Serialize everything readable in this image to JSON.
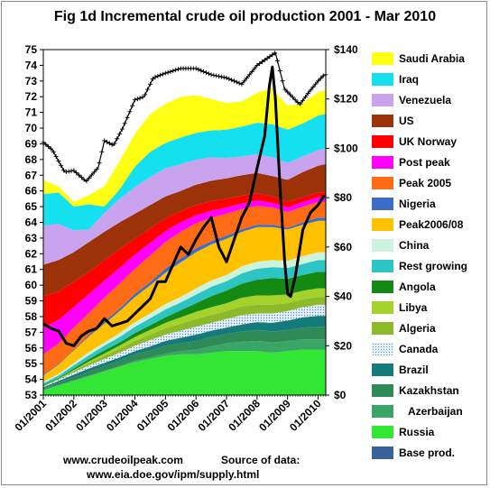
{
  "chart_data": {
    "type": "area",
    "title": "Fig 1d Incremental crude oil production 2001 - Mar 2010",
    "x_start": "2001-01",
    "x_end": "2010-03",
    "x_tick_labels": [
      "01/2001",
      "01/2002",
      "01/2003",
      "01/2004",
      "01/2005",
      "01/2006",
      "01/2007",
      "01/2008",
      "01/2009",
      "01/2010"
    ],
    "y_left": {
      "min": 53,
      "max": 75,
      "ticks": [
        53,
        54,
        55,
        56,
        57,
        58,
        59,
        60,
        61,
        62,
        63,
        64,
        65,
        66,
        67,
        68,
        69,
        70,
        71,
        72,
        73,
        74,
        75
      ]
    },
    "y_right": {
      "min": 0,
      "max": 140,
      "tick_labels": [
        "$0",
        "$20",
        "$40",
        "$60",
        "$80",
        "$100",
        "$120",
        "$140"
      ]
    },
    "stack_order_bottom_to_top": [
      "Base prod.",
      "Russia",
      "Azerbaijan",
      "Kazakhstan",
      "Brazil",
      "Canada",
      "Algeria",
      "Libya",
      "Angola",
      "Rest growing",
      "China",
      "Peak2006/08",
      "Nigeria",
      "Peak 2005",
      "Post peak",
      "UK Norway",
      "US",
      "Venezuela",
      "Iraq",
      "Saudi Arabia"
    ],
    "x_key": [
      2001.0,
      2001.5,
      2002.0,
      2002.5,
      2003.0,
      2003.5,
      2004.0,
      2004.5,
      2005.0,
      2005.5,
      2006.0,
      2006.5,
      2007.0,
      2007.5,
      2008.0,
      2008.5,
      2009.0,
      2009.5,
      2010.0,
      2010.2
    ],
    "series": [
      {
        "name": "Base prod.",
        "values": [
          53.0,
          53.0,
          53.0,
          53.0,
          53.0,
          53.0,
          53.0,
          53.0,
          53.0,
          53.0,
          53.0,
          53.0,
          53.0,
          53.0,
          53.0,
          53.0,
          53.0,
          53.0,
          53.0,
          53.0
        ]
      },
      {
        "name": "Russia",
        "values": [
          0.3,
          0.6,
          0.9,
          1.2,
          1.5,
          1.8,
          2.1,
          2.3,
          2.5,
          2.6,
          2.6,
          2.7,
          2.8,
          2.8,
          2.8,
          2.7,
          2.8,
          2.9,
          2.9,
          2.9
        ]
      },
      {
        "name": "Azerbaijan",
        "values": [
          0.05,
          0.05,
          0.05,
          0.05,
          0.05,
          0.05,
          0.1,
          0.1,
          0.15,
          0.2,
          0.3,
          0.4,
          0.5,
          0.6,
          0.65,
          0.65,
          0.65,
          0.65,
          0.65,
          0.65
        ]
      },
      {
        "name": "Kazakhstan",
        "values": [
          0.1,
          0.15,
          0.2,
          0.25,
          0.3,
          0.35,
          0.4,
          0.45,
          0.5,
          0.5,
          0.55,
          0.6,
          0.6,
          0.65,
          0.7,
          0.7,
          0.7,
          0.75,
          0.8,
          0.8
        ]
      },
      {
        "name": "Brazil",
        "values": [
          0.05,
          0.1,
          0.15,
          0.2,
          0.2,
          0.2,
          0.2,
          0.25,
          0.3,
          0.35,
          0.4,
          0.4,
          0.4,
          0.45,
          0.5,
          0.55,
          0.6,
          0.65,
          0.7,
          0.7
        ]
      },
      {
        "name": "Canada",
        "values": [
          0.05,
          0.1,
          0.15,
          0.2,
          0.25,
          0.3,
          0.35,
          0.4,
          0.4,
          0.45,
          0.5,
          0.5,
          0.55,
          0.6,
          0.55,
          0.6,
          0.6,
          0.65,
          0.7,
          0.7
        ]
      },
      {
        "name": "Algeria",
        "values": [
          0.05,
          0.05,
          0.1,
          0.15,
          0.2,
          0.25,
          0.3,
          0.35,
          0.4,
          0.45,
          0.5,
          0.5,
          0.5,
          0.55,
          0.55,
          0.55,
          0.5,
          0.5,
          0.5,
          0.5
        ]
      },
      {
        "name": "Libya",
        "values": [
          0.0,
          0.0,
          0.05,
          0.1,
          0.15,
          0.2,
          0.25,
          0.3,
          0.35,
          0.4,
          0.45,
          0.5,
          0.5,
          0.55,
          0.6,
          0.6,
          0.55,
          0.55,
          0.55,
          0.55
        ]
      },
      {
        "name": "Angola",
        "values": [
          0.05,
          0.05,
          0.1,
          0.15,
          0.2,
          0.2,
          0.25,
          0.3,
          0.35,
          0.45,
          0.55,
          0.7,
          0.8,
          0.9,
          1.0,
          1.1,
          1.0,
          1.0,
          1.05,
          1.05
        ]
      },
      {
        "name": "Rest growing",
        "values": [
          0.1,
          0.15,
          0.2,
          0.25,
          0.3,
          0.35,
          0.4,
          0.45,
          0.5,
          0.5,
          0.55,
          0.6,
          0.6,
          0.65,
          0.7,
          0.7,
          0.7,
          0.7,
          0.75,
          0.75
        ]
      },
      {
        "name": "China",
        "values": [
          0.1,
          0.1,
          0.15,
          0.2,
          0.2,
          0.25,
          0.3,
          0.3,
          0.35,
          0.35,
          0.4,
          0.4,
          0.4,
          0.45,
          0.45,
          0.45,
          0.45,
          0.5,
          0.5,
          0.5
        ]
      },
      {
        "name": "Peak2006/08",
        "values": [
          0.4,
          0.6,
          0.8,
          1.0,
          1.2,
          1.4,
          1.6,
          1.8,
          2.0,
          2.2,
          2.3,
          2.3,
          2.3,
          2.2,
          2.2,
          2.1,
          2.0,
          2.0,
          2.0,
          2.0
        ]
      },
      {
        "name": "Nigeria",
        "values": [
          0.05,
          0.05,
          0.05,
          0.1,
          0.15,
          0.15,
          0.2,
          0.2,
          0.25,
          0.25,
          0.25,
          0.2,
          0.2,
          0.15,
          0.15,
          0.15,
          0.1,
          0.15,
          0.2,
          0.2
        ]
      },
      {
        "name": "Peak 2005",
        "values": [
          1.3,
          1.3,
          1.4,
          1.4,
          1.5,
          1.6,
          1.6,
          1.7,
          1.7,
          1.7,
          1.6,
          1.5,
          1.4,
          1.3,
          1.2,
          1.1,
          1.0,
          1.0,
          1.0,
          1.0
        ]
      },
      {
        "name": "Post peak",
        "values": [
          1.7,
          1.5,
          1.3,
          1.2,
          1.1,
          1.0,
          0.9,
          0.8,
          0.7,
          0.6,
          0.5,
          0.45,
          0.4,
          0.35,
          0.35,
          0.3,
          0.3,
          0.3,
          0.3,
          0.3
        ]
      },
      {
        "name": "UK Norway",
        "values": [
          2.0,
          1.8,
          1.6,
          1.4,
          1.3,
          1.2,
          1.0,
          0.9,
          0.8,
          0.7,
          0.65,
          0.6,
          0.55,
          0.5,
          0.45,
          0.4,
          0.35,
          0.3,
          0.3,
          0.3
        ]
      },
      {
        "name": "US",
        "values": [
          2.0,
          2.0,
          1.9,
          1.9,
          1.8,
          1.7,
          1.6,
          1.5,
          1.4,
          1.3,
          1.3,
          1.3,
          1.3,
          1.3,
          1.3,
          1.3,
          1.4,
          1.6,
          1.7,
          1.8
        ]
      },
      {
        "name": "Venezuela",
        "values": [
          2.5,
          2.3,
          1.4,
          0.8,
          1.2,
          1.5,
          1.7,
          1.8,
          1.8,
          1.7,
          1.6,
          1.5,
          1.3,
          1.2,
          1.2,
          1.2,
          1.1,
          1.0,
          1.0,
          1.0
        ]
      },
      {
        "name": "Iraq",
        "values": [
          2.0,
          2.0,
          1.5,
          1.6,
          0.4,
          0.6,
          1.3,
          1.6,
          1.6,
          1.7,
          1.7,
          1.7,
          1.8,
          1.9,
          2.0,
          2.1,
          2.1,
          2.1,
          2.2,
          2.2
        ]
      },
      {
        "name": "Saudi Arabia",
        "values": [
          0.9,
          0.4,
          0.3,
          0.6,
          1.3,
          1.8,
          2.1,
          2.4,
          2.5,
          2.6,
          2.4,
          2.0,
          1.7,
          1.6,
          1.9,
          2.3,
          1.5,
          1.3,
          1.5,
          1.5
        ]
      }
    ],
    "total_production_line": {
      "x": [
        2001.0,
        2001.3,
        2001.7,
        2002.0,
        2002.4,
        2002.8,
        2003.0,
        2003.3,
        2003.6,
        2004.0,
        2004.3,
        2004.6,
        2005.0,
        2005.5,
        2006.0,
        2006.5,
        2007.0,
        2007.5,
        2008.0,
        2008.3,
        2008.6,
        2008.9,
        2009.1,
        2009.4,
        2009.7,
        2010.0,
        2010.2
      ],
      "values": [
        69.1,
        68.6,
        67.2,
        67.3,
        66.6,
        67.5,
        69.2,
        68.9,
        70.0,
        71.8,
        72.0,
        73.2,
        73.5,
        73.8,
        73.8,
        73.4,
        73.2,
        72.8,
        74.0,
        74.4,
        74.8,
        72.5,
        72.1,
        71.5,
        72.3,
        73.0,
        73.4
      ]
    },
    "oil_price_line": {
      "x": [
        2001.0,
        2001.25,
        2001.5,
        2001.75,
        2002.0,
        2002.25,
        2002.5,
        2002.75,
        2003.0,
        2003.25,
        2003.5,
        2003.75,
        2004.0,
        2004.25,
        2004.5,
        2004.75,
        2005.0,
        2005.25,
        2005.5,
        2005.75,
        2006.0,
        2006.25,
        2006.5,
        2006.75,
        2007.0,
        2007.25,
        2007.5,
        2007.75,
        2008.0,
        2008.25,
        2008.4,
        2008.5,
        2008.6,
        2008.75,
        2008.9,
        2009.0,
        2009.1,
        2009.25,
        2009.5,
        2009.75,
        2010.0,
        2010.2
      ],
      "values": [
        29,
        27,
        26,
        21,
        20,
        24,
        26,
        27,
        31,
        28,
        29,
        30,
        33,
        36,
        39,
        46,
        46,
        53,
        60,
        57,
        63,
        68,
        72,
        60,
        54,
        63,
        72,
        78,
        92,
        105,
        125,
        133,
        120,
        85,
        55,
        41,
        40,
        48,
        67,
        74,
        77,
        81
      ]
    },
    "series_colors": {
      "Base prod.": "#37629a",
      "Russia": "#33e633",
      "Azerbaijan": "#3aa666",
      "Kazakhstan": "#2e8b57",
      "Brazil": "#147a7a",
      "Canada": "#b5d3e8",
      "Algeria": "#8cba2a",
      "Libya": "#a4d22a",
      "Angola": "#148a14",
      "Rest growing": "#2ec4c4",
      "China": "#ccf4dc",
      "Peak2006/08": "#ffc000",
      "Nigeria": "#3a6cc8",
      "Peak 2005": "#ff6a14",
      "Post peak": "#ff00ff",
      "UK Norway": "#ff0000",
      "US": "#9c3208",
      "Venezuela": "#c9a3ee",
      "Iraq": "#14e0f0",
      "Saudi Arabia": "#ffff14"
    }
  },
  "legend": {
    "items": [
      {
        "label": "Saudi Arabia",
        "color": "#ffff14"
      },
      {
        "label": "Iraq",
        "color": "#14e0f0"
      },
      {
        "label": "Venezuela",
        "color": "#c9a3ee"
      },
      {
        "label": "US",
        "color": "#9c3208"
      },
      {
        "label": "UK Norway",
        "color": "#ff0000"
      },
      {
        "label": "Post peak",
        "color": "#ff00ff"
      },
      {
        "label": "Peak 2005",
        "color": "#ff6a14"
      },
      {
        "label": "Nigeria",
        "color": "#3a6cc8"
      },
      {
        "label": "Peak2006/08",
        "color": "#ffc000"
      },
      {
        "label": "China",
        "color": "#ccf4dc"
      },
      {
        "label": "Rest growing",
        "color": "#2ec4c4"
      },
      {
        "label": "Angola",
        "color": "#148a14"
      },
      {
        "label": "Libya",
        "color": "#a4d22a"
      },
      {
        "label": "Algeria",
        "color": "#8cba2a"
      },
      {
        "label": "Canada",
        "color": "#b5d3e8"
      },
      {
        "label": "Brazil",
        "color": "#147a7a"
      },
      {
        "label": "Kazakhstan",
        "color": "#2e8b57"
      },
      {
        "label": "Azerbaijan",
        "color": "#3aa666"
      },
      {
        "label": "Russia",
        "color": "#33e633"
      },
      {
        "label": "Base prod.",
        "color": "#37629a"
      }
    ]
  },
  "footer": {
    "site": "www.crudeoilpeak.com",
    "source_label": "Source of data:",
    "source_url": "www.eia.doe.gov/ipm/supply.html"
  }
}
